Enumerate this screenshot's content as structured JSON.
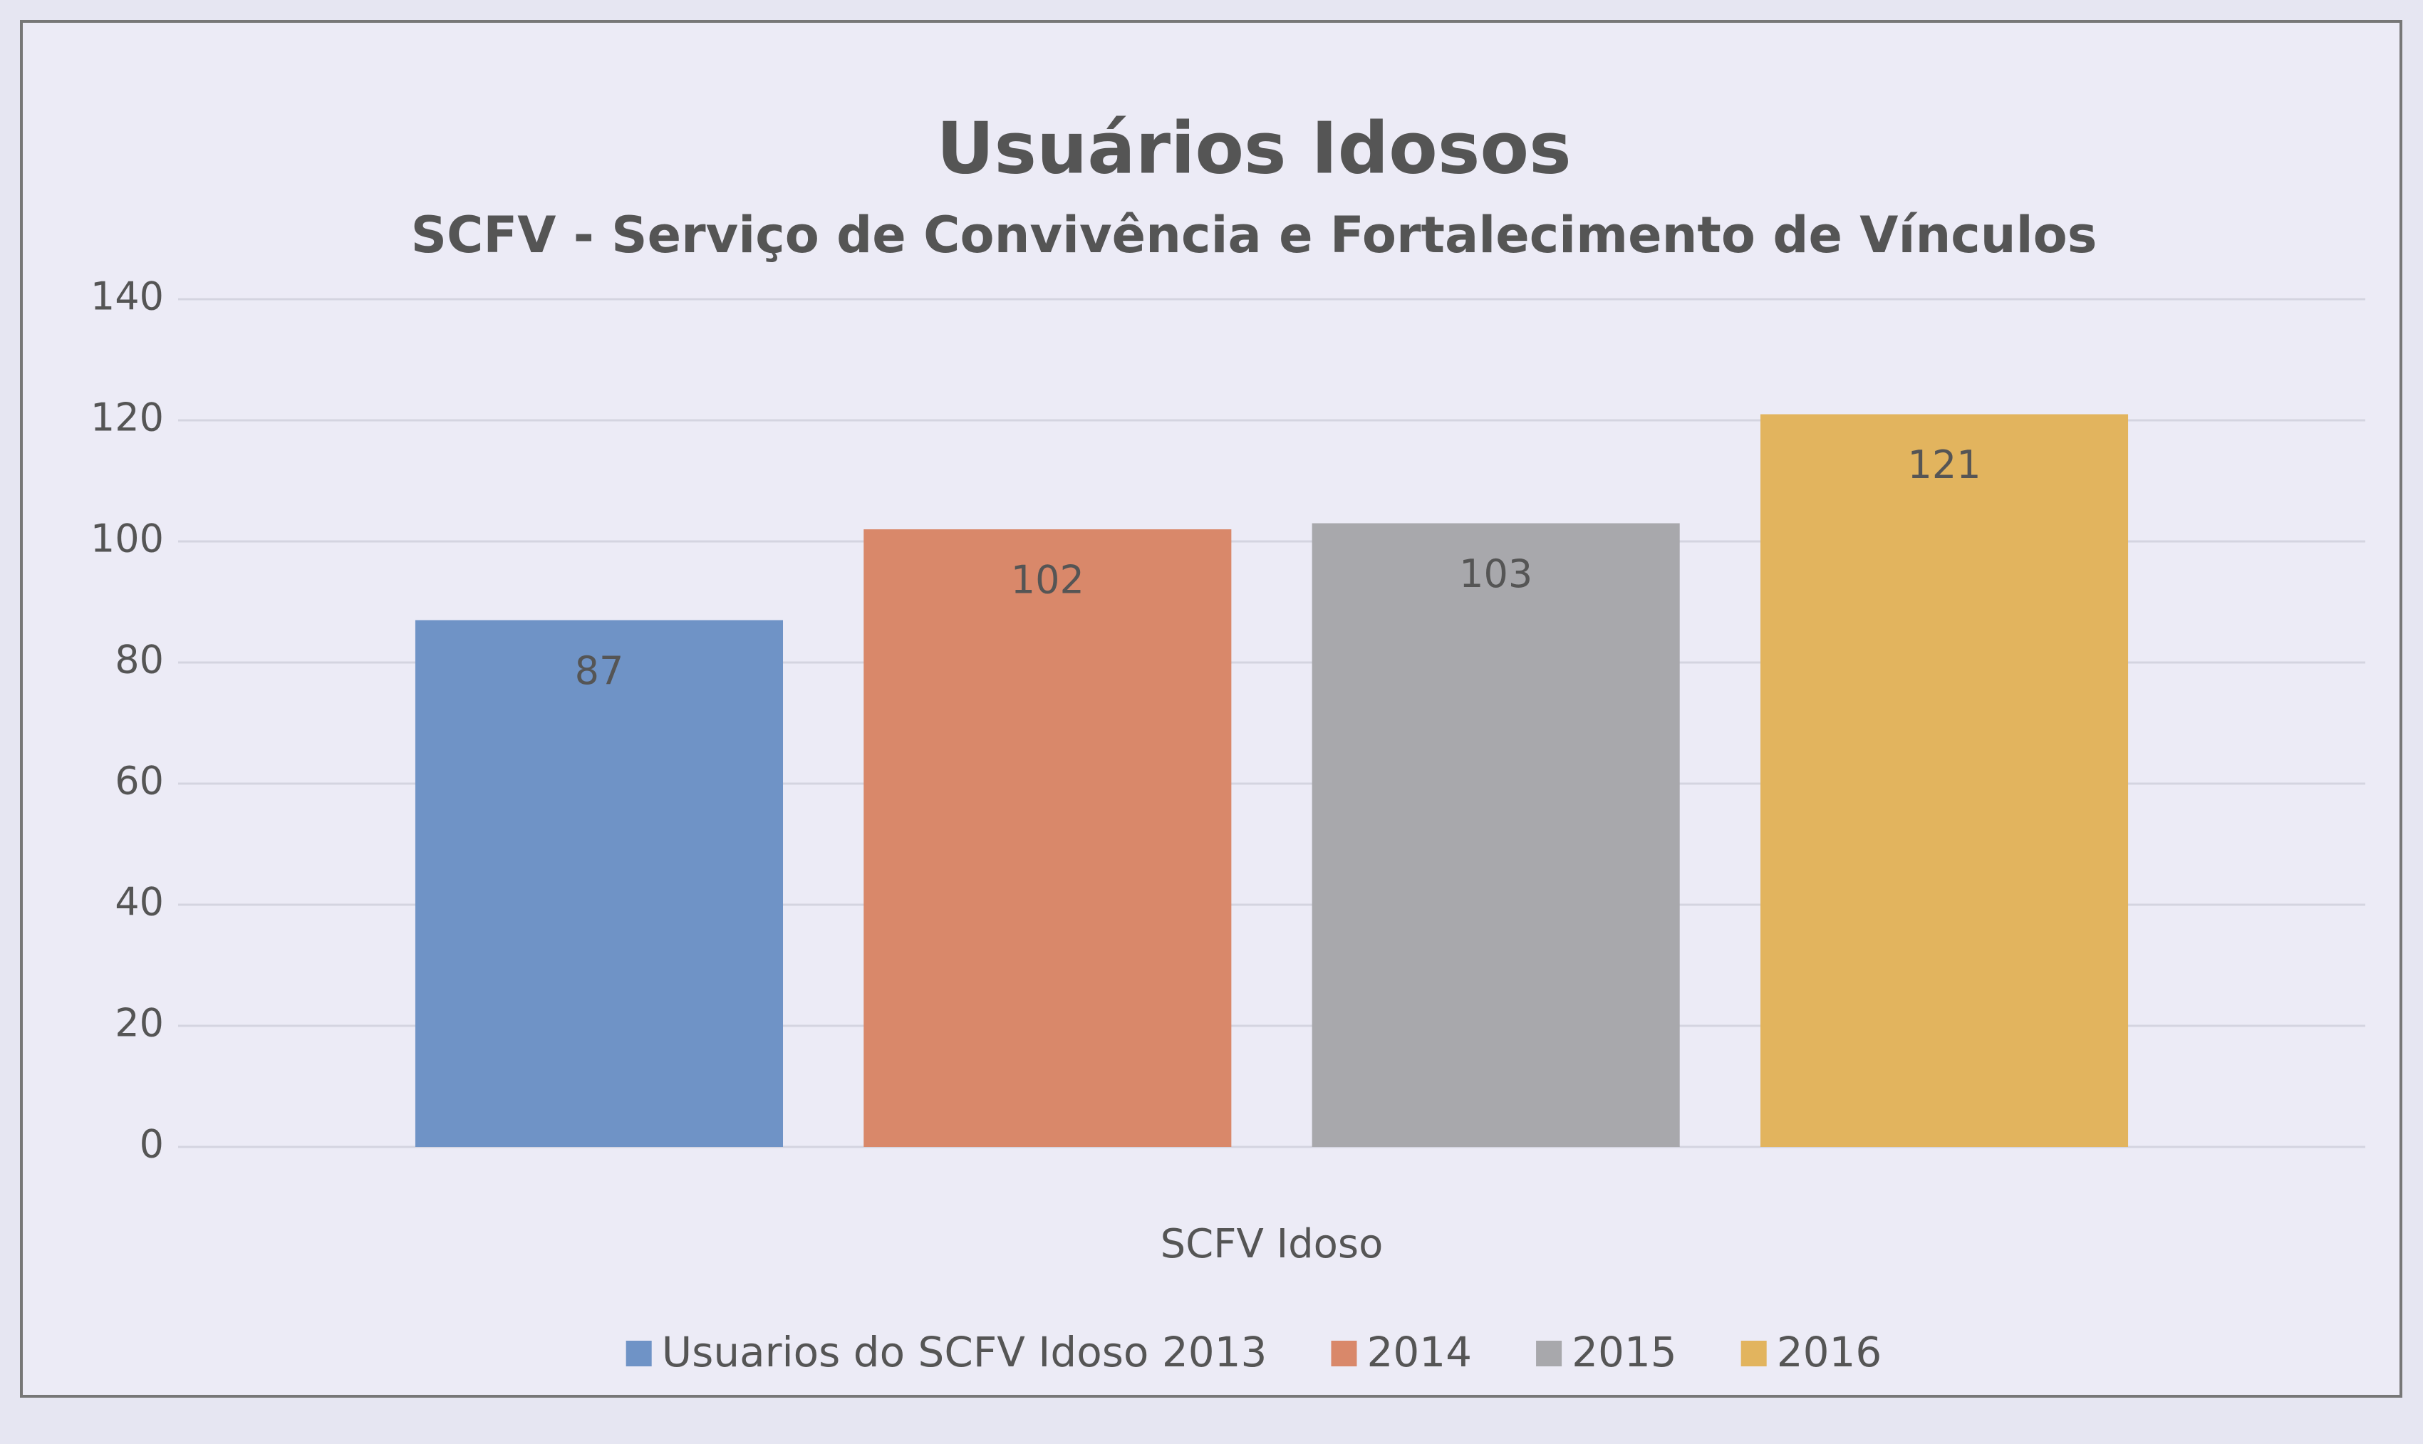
{
  "chart_data": {
    "type": "bar",
    "title": "Usuários  Idosos",
    "subtitle": "SCFV - Serviço de Convivência e Fortalecimento de Vínculos",
    "categories": [
      "SCFV Idoso"
    ],
    "series": [
      {
        "name": "Usuarios do SCFV Idoso  2013",
        "color": "#6f93c6",
        "values": [
          87
        ]
      },
      {
        "name": "2014",
        "color": "#d9886a",
        "values": [
          102
        ]
      },
      {
        "name": "2015",
        "color": "#a8a8ac",
        "values": [
          103
        ]
      },
      {
        "name": "2016",
        "color": "#e2b45e",
        "values": [
          121
        ]
      }
    ],
    "ylim": [
      0,
      140
    ],
    "yticks": [
      0,
      20,
      40,
      60,
      80,
      100,
      120,
      140
    ],
    "grid": true,
    "legend": "bottom"
  }
}
